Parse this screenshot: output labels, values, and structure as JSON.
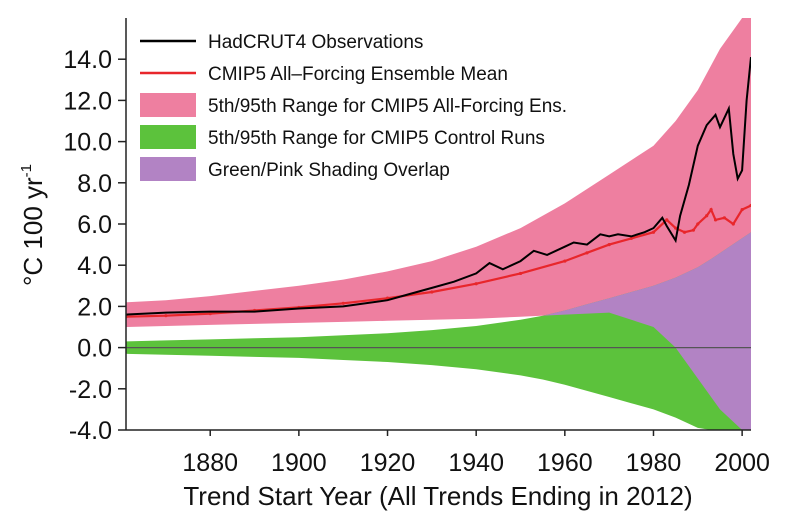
{
  "chart_data": {
    "type": "area",
    "xlabel": "Trend Start Year (All Trends Ending in 2012)",
    "ylabel": "°C 100 yr",
    "ylabel_superscript": "-1",
    "xlim": [
      1861,
      2002
    ],
    "ylim": [
      -4.0,
      16.0
    ],
    "x_ticks": [
      1880,
      1900,
      1920,
      1940,
      1960,
      1980,
      2000
    ],
    "y_ticks": [
      -4.0,
      -2.0,
      0.0,
      2.0,
      4.0,
      6.0,
      8.0,
      10.0,
      12.0,
      14.0
    ],
    "y_tick_labels": [
      "-4.0",
      "-2.0",
      "0.0",
      "2.0",
      "4.0",
      "6.0",
      "8.0",
      "10.0",
      "12.0",
      "14.0"
    ],
    "legend_position": "top-left",
    "legend": [
      {
        "label": "HadCRUT4 Observations",
        "style": "line",
        "color": "#000000"
      },
      {
        "label": "CMIP5 All–Forcing Ensemble Mean",
        "style": "line",
        "color": "#e8262b"
      },
      {
        "label": "5th/95th Range for CMIP5 All-Forcing Ens.",
        "style": "box",
        "color": "#ee7fa0"
      },
      {
        "label": "5th/95th Range for CMIP5 Control Runs",
        "style": "box",
        "color": "#5cc23c"
      },
      {
        "label": "Green/Pink Shading Overlap",
        "style": "box",
        "color": "#b283c4"
      }
    ],
    "colors": {
      "pink": "#ee7fa0",
      "green": "#5cc23c",
      "overlap": "#b283c4",
      "obs": "#000000",
      "mean": "#e8262b",
      "zero_line": "#555555"
    },
    "series": [
      {
        "name": "HadCRUT4 Observations",
        "x": [
          1861,
          1870,
          1880,
          1890,
          1900,
          1910,
          1920,
          1925,
          1930,
          1935,
          1940,
          1943,
          1946,
          1950,
          1953,
          1956,
          1960,
          1962,
          1965,
          1968,
          1970,
          1972,
          1975,
          1978,
          1980,
          1982,
          1983,
          1985,
          1986,
          1988,
          1990,
          1992,
          1994,
          1995,
          1997,
          1998,
          1999,
          2000,
          2001,
          2002
        ],
        "y": [
          1.6,
          1.7,
          1.75,
          1.75,
          1.9,
          2.0,
          2.3,
          2.6,
          2.9,
          3.2,
          3.6,
          4.1,
          3.8,
          4.2,
          4.7,
          4.5,
          4.9,
          5.1,
          5.0,
          5.5,
          5.4,
          5.5,
          5.4,
          5.6,
          5.8,
          6.3,
          5.9,
          5.2,
          6.4,
          7.9,
          9.8,
          10.8,
          11.3,
          10.7,
          11.6,
          9.4,
          8.2,
          8.6,
          12.0,
          14.1
        ]
      },
      {
        "name": "CMIP5 All–Forcing Ensemble Mean",
        "x": [
          1861,
          1870,
          1880,
          1890,
          1900,
          1910,
          1920,
          1930,
          1940,
          1950,
          1960,
          1965,
          1970,
          1975,
          1980,
          1983,
          1985,
          1987,
          1989,
          1990,
          1992,
          1993,
          1994,
          1996,
          1998,
          2000,
          2002
        ],
        "y": [
          1.5,
          1.55,
          1.65,
          1.8,
          1.95,
          2.15,
          2.4,
          2.7,
          3.1,
          3.6,
          4.2,
          4.6,
          5.0,
          5.3,
          5.6,
          6.2,
          5.8,
          5.6,
          5.7,
          6.0,
          6.4,
          6.7,
          6.2,
          6.3,
          6.0,
          6.7,
          6.9
        ]
      },
      {
        "name": "5th/95th Range for CMIP5 All-Forcing Ens.",
        "x": [
          1861,
          1870,
          1880,
          1890,
          1900,
          1910,
          1920,
          1930,
          1940,
          1950,
          1960,
          1970,
          1980,
          1985,
          1990,
          1995,
          2000,
          2002
        ],
        "lower": [
          1.0,
          1.05,
          1.1,
          1.15,
          1.2,
          1.25,
          1.3,
          1.35,
          1.4,
          1.5,
          1.6,
          1.7,
          1.0,
          0.0,
          -1.5,
          -3.0,
          -4.0,
          -4.0
        ],
        "upper": [
          2.2,
          2.3,
          2.5,
          2.75,
          3.0,
          3.3,
          3.7,
          4.2,
          4.9,
          5.8,
          7.0,
          8.4,
          9.8,
          11.0,
          12.5,
          14.5,
          16.0,
          16.0
        ]
      },
      {
        "name": "5th/95th Range for CMIP5 Control Runs",
        "x": [
          1861,
          1870,
          1880,
          1890,
          1900,
          1910,
          1920,
          1930,
          1940,
          1950,
          1955,
          1960,
          1965,
          1970,
          1975,
          1980,
          1985,
          1990,
          1993,
          2002
        ],
        "lower": [
          -0.3,
          -0.35,
          -0.4,
          -0.45,
          -0.5,
          -0.6,
          -0.7,
          -0.85,
          -1.05,
          -1.35,
          -1.55,
          -1.8,
          -2.1,
          -2.4,
          -2.7,
          -3.0,
          -3.4,
          -3.9,
          -4.0,
          -4.0
        ],
        "upper": [
          0.3,
          0.35,
          0.4,
          0.45,
          0.5,
          0.6,
          0.7,
          0.85,
          1.05,
          1.35,
          1.55,
          1.8,
          2.1,
          2.4,
          2.7,
          3.0,
          3.4,
          3.9,
          4.3,
          5.6
        ]
      }
    ]
  }
}
